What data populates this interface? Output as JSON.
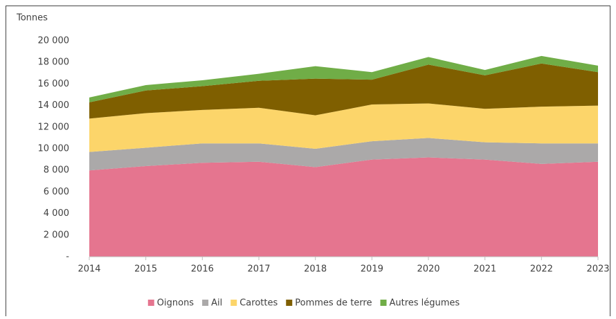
{
  "chart_data": {
    "type": "stacked_area",
    "y_axis_label": "Tonnes",
    "categories": [
      "2014",
      "2015",
      "2016",
      "2017",
      "2018",
      "2019",
      "2020",
      "2021",
      "2022",
      "2023"
    ],
    "series": [
      {
        "name": "Oignons",
        "color": "#e5758f",
        "values": [
          8000,
          8400,
          8700,
          8800,
          8300,
          9000,
          9200,
          9000,
          8600,
          8800
        ]
      },
      {
        "name": "Ail",
        "color": "#aba9a9",
        "values": [
          1700,
          1700,
          1800,
          1700,
          1700,
          1700,
          1800,
          1600,
          1900,
          1700
        ]
      },
      {
        "name": "Carottes",
        "color": "#fcd56a",
        "values": [
          3100,
          3200,
          3100,
          3300,
          3100,
          3400,
          3200,
          3100,
          3400,
          3500
        ]
      },
      {
        "name": "Pommes de terre",
        "color": "#7f5f00",
        "values": [
          1500,
          2100,
          2200,
          2500,
          3400,
          2300,
          3600,
          3100,
          4000,
          3100
        ]
      },
      {
        "name": "Autres légumes",
        "color": "#70ad47",
        "values": [
          450,
          500,
          550,
          650,
          1150,
          700,
          700,
          500,
          700,
          600
        ]
      }
    ],
    "ylim": [
      0,
      20000
    ],
    "yticks": [
      {
        "value": 0,
        "label": "-"
      },
      {
        "value": 2000,
        "label": "2 000"
      },
      {
        "value": 4000,
        "label": "4 000"
      },
      {
        "value": 6000,
        "label": "6 000"
      },
      {
        "value": 8000,
        "label": "8 000"
      },
      {
        "value": 10000,
        "label": "10 000"
      },
      {
        "value": 12000,
        "label": "12 000"
      },
      {
        "value": 14000,
        "label": "14 000"
      },
      {
        "value": 16000,
        "label": "16 000"
      },
      {
        "value": 18000,
        "label": "18 000"
      },
      {
        "value": 20000,
        "label": "20 000"
      }
    ],
    "grid": false,
    "legend": "bottom"
  }
}
